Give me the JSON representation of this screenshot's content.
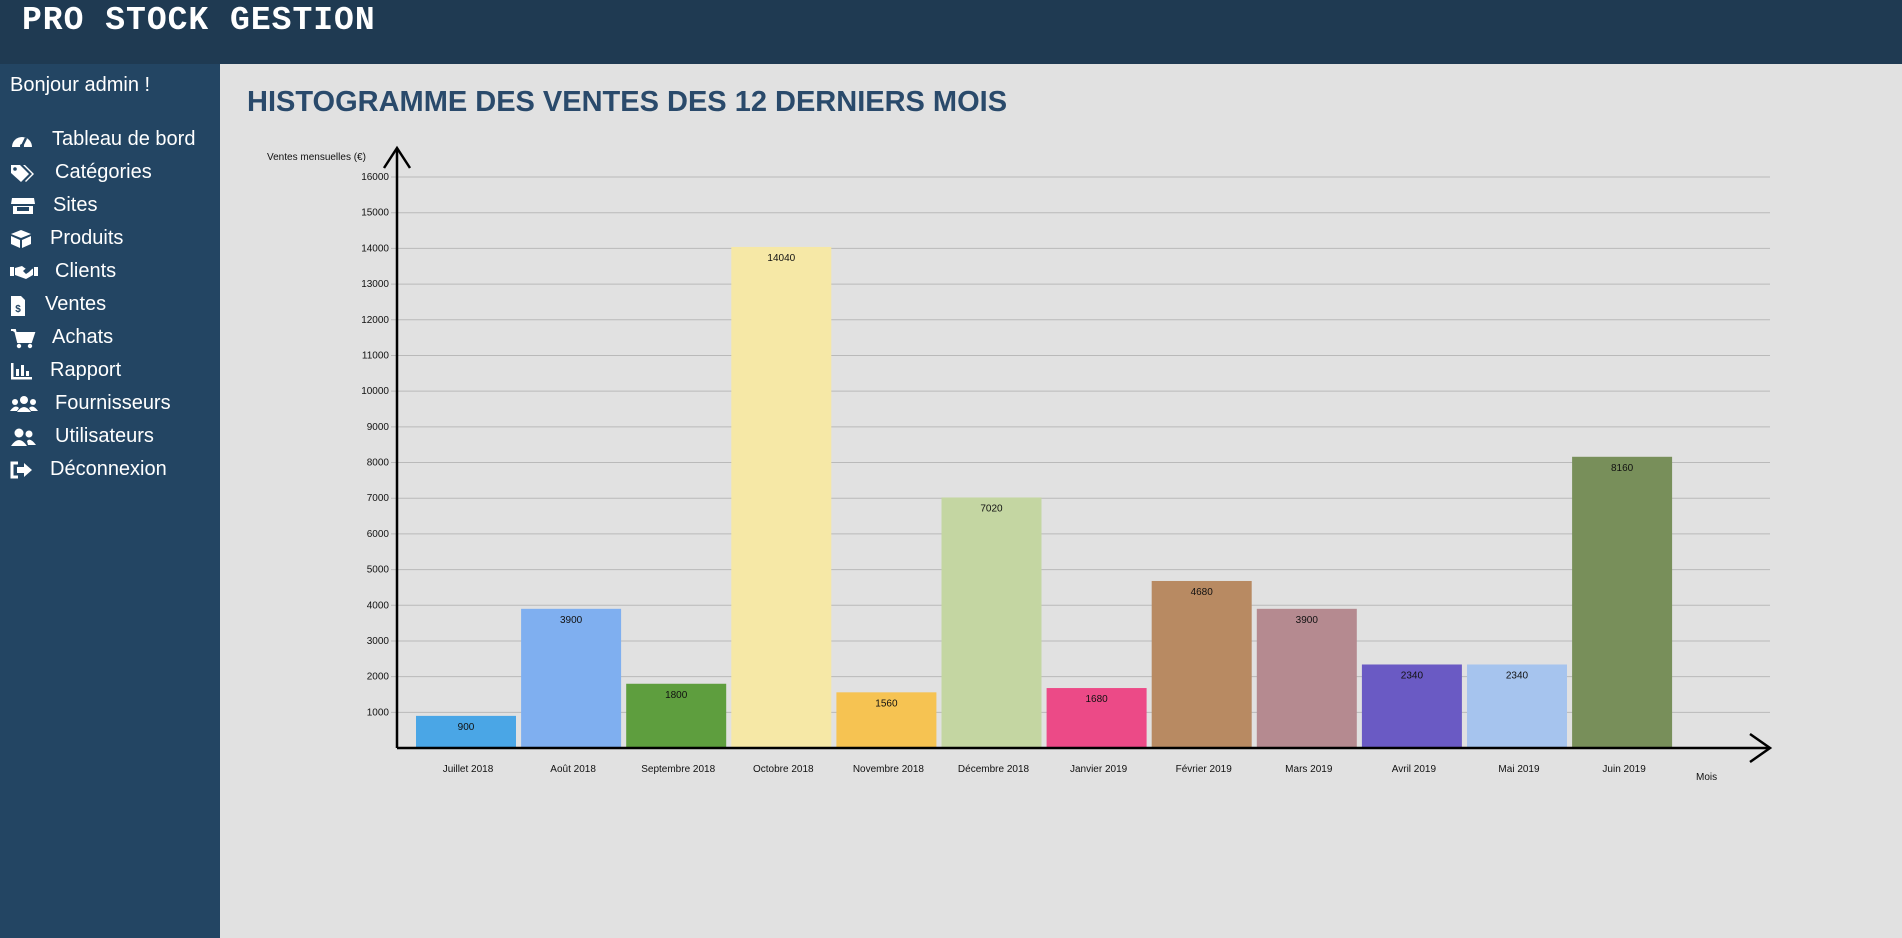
{
  "app": {
    "title": "PRO STOCK GESTION"
  },
  "sidebar": {
    "greeting": "Bonjour admin !",
    "items": [
      {
        "label": "Tableau de bord",
        "icon": "dashboard-icon"
      },
      {
        "label": "Catégories",
        "icon": "tags-icon"
      },
      {
        "label": "Sites",
        "icon": "store-icon"
      },
      {
        "label": "Produits",
        "icon": "box-icon"
      },
      {
        "label": "Clients",
        "icon": "handshake-icon"
      },
      {
        "label": "Ventes",
        "icon": "invoice-icon"
      },
      {
        "label": "Achats",
        "icon": "cart-icon"
      },
      {
        "label": "Rapport",
        "icon": "bar-chart-icon"
      },
      {
        "label": "Fournisseurs",
        "icon": "users-icon"
      },
      {
        "label": "Utilisateurs",
        "icon": "user-friends-icon"
      },
      {
        "label": "Déconnexion",
        "icon": "sign-out-icon"
      }
    ]
  },
  "main": {
    "title": "HISTOGRAMME DES VENTES DES 12 DERNIERS MOIS"
  },
  "chart_data": {
    "type": "bar",
    "title": "HISTOGRAMME DES VENTES DES 12 DERNIERS MOIS",
    "ylabel": "Ventes mensuelles (€)",
    "xlabel": "Mois",
    "ylim": [
      0,
      16000
    ],
    "yticks": [
      1000,
      2000,
      3000,
      4000,
      5000,
      6000,
      7000,
      8000,
      9000,
      10000,
      11000,
      12000,
      13000,
      14000,
      15000,
      16000
    ],
    "grid": true,
    "categories": [
      "Juillet 2018",
      "Août 2018",
      "Septembre 2018",
      "Octobre 2018",
      "Novembre 2018",
      "Décembre 2018",
      "Janvier 2019",
      "Février 2019",
      "Mars 2019",
      "Avril 2019",
      "Mai 2019",
      "Juin 2019"
    ],
    "values": [
      900,
      3900,
      1800,
      14040,
      1560,
      7020,
      1680,
      4680,
      3900,
      2340,
      2340,
      8160
    ],
    "colors": [
      "#4aa6e6",
      "#7faff0",
      "#5e9e3e",
      "#f6e8a6",
      "#f6c352",
      "#c4d6a2",
      "#ec4a87",
      "#b88a62",
      "#b58a90",
      "#6a5ac4",
      "#a6c4ee",
      "#788f5a"
    ]
  }
}
